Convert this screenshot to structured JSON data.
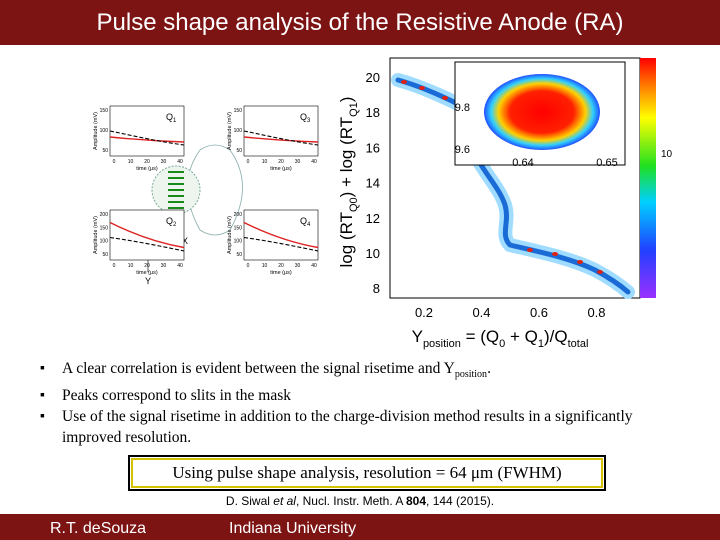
{
  "header": {
    "title": "Pulse shape analysis of the Resistive Anode (RA)"
  },
  "left_figure": {
    "panels": [
      {
        "label": "Q",
        "sub": "1"
      },
      {
        "label": "Q",
        "sub": "3"
      },
      {
        "label": "Q",
        "sub": "2"
      },
      {
        "label": "Q",
        "sub": "4"
      }
    ],
    "y_axis": "Amplitude (mV)",
    "x_axis": "time (μs)",
    "y_ticks_top": [
      "150",
      "100",
      "50"
    ],
    "y_ticks_bottom": [
      "200",
      "150",
      "100",
      "50"
    ],
    "x_ticks": [
      "0",
      "10",
      "20",
      "30",
      "40"
    ],
    "axis_x": "X",
    "axis_y": "Y"
  },
  "right_figure": {
    "y_label": {
      "a": "log (RT",
      "b": "Q0",
      "c": ") + log (RT",
      "d": "Q1",
      "e": ")"
    },
    "x_label": {
      "a": "Y",
      "b": "position",
      "c": " = (Q",
      "d": "0",
      "e": " + Q",
      "f": "1",
      "g": ")/Q",
      "h": "total"
    },
    "y_ticks": [
      "20",
      "18",
      "16",
      "14",
      "12",
      "10",
      "8"
    ],
    "x_ticks": [
      "0.2",
      "0.4",
      "0.6",
      "0.8"
    ],
    "inset_y_ticks": [
      "9.8",
      "9.6"
    ],
    "inset_x_ticks": [
      "0.64",
      "0.65"
    ],
    "colorbar_label": "10"
  },
  "bullets": [
    {
      "text": "A clear correlation is evident between the signal risetime and Y",
      "sub": "position",
      "tail": "."
    },
    {
      "text": "Peaks correspond to slits in the mask"
    },
    {
      "text": "Use of the signal risetime in addition to the charge-division method results in a significantly improved resolution."
    }
  ],
  "callout": "Using pulse shape analysis, resolution = 64 μm (FWHM)",
  "reference": {
    "a": "D. Siwal ",
    "b": "et al",
    "c": ", Nucl. Instr. Meth. A ",
    "d": "804",
    "e": ", 144 (2015)."
  },
  "footer": {
    "author": "R.T. deSouza",
    "institution": "Indiana University"
  }
}
